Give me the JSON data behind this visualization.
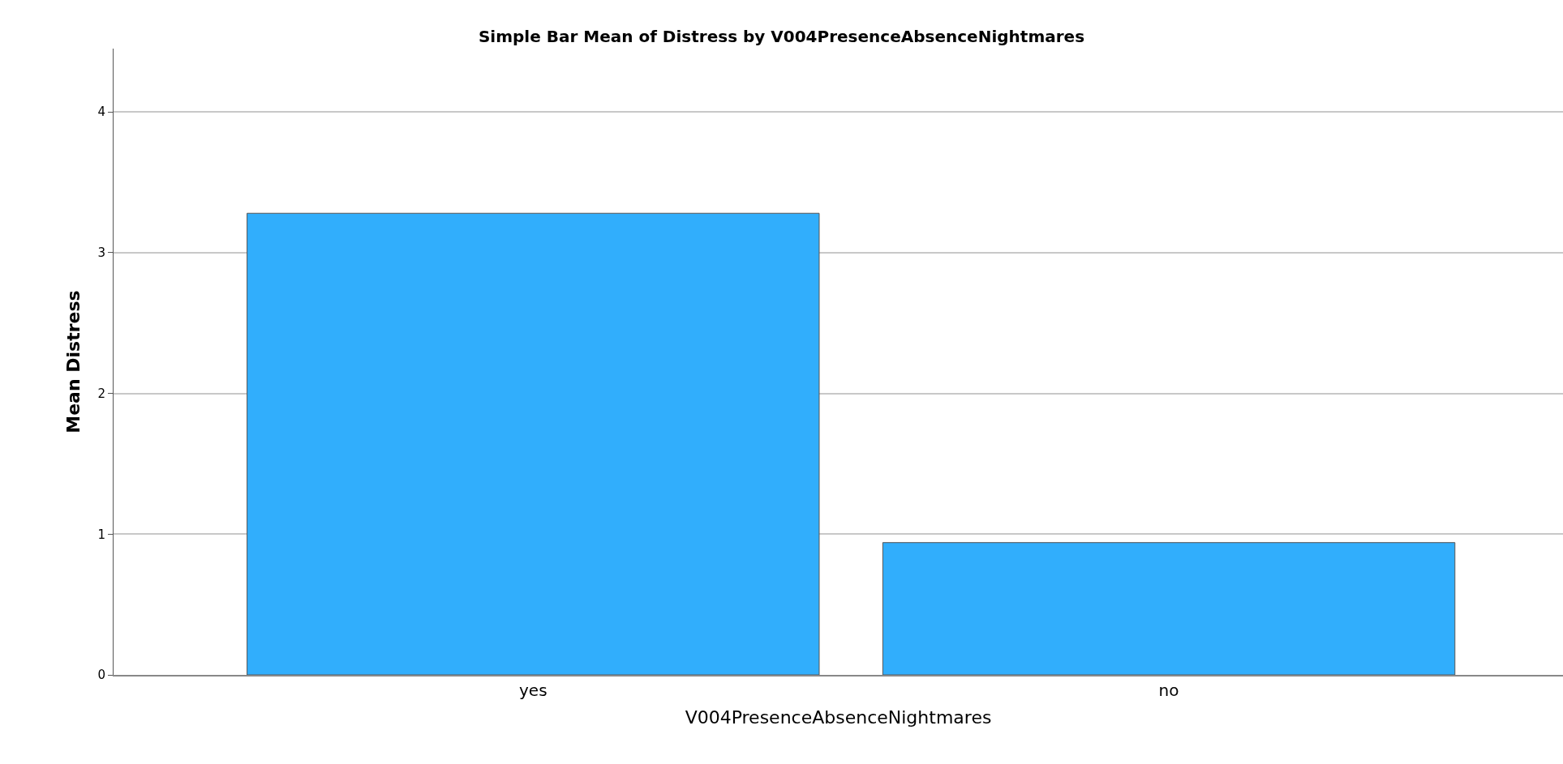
{
  "chart_data": {
    "type": "bar",
    "title": "Simple Bar Mean of Distress by V004PresenceAbsenceNightmares",
    "xlabel": "V004PresenceAbsenceNightmares",
    "ylabel": "Mean Distress",
    "categories": [
      "yes",
      "no"
    ],
    "values": [
      3.28,
      0.94
    ],
    "color": "#31aefc",
    "ylim": [
      0,
      4.45
    ],
    "yticks": [
      0,
      1,
      2,
      3,
      4
    ],
    "grid": "y"
  }
}
